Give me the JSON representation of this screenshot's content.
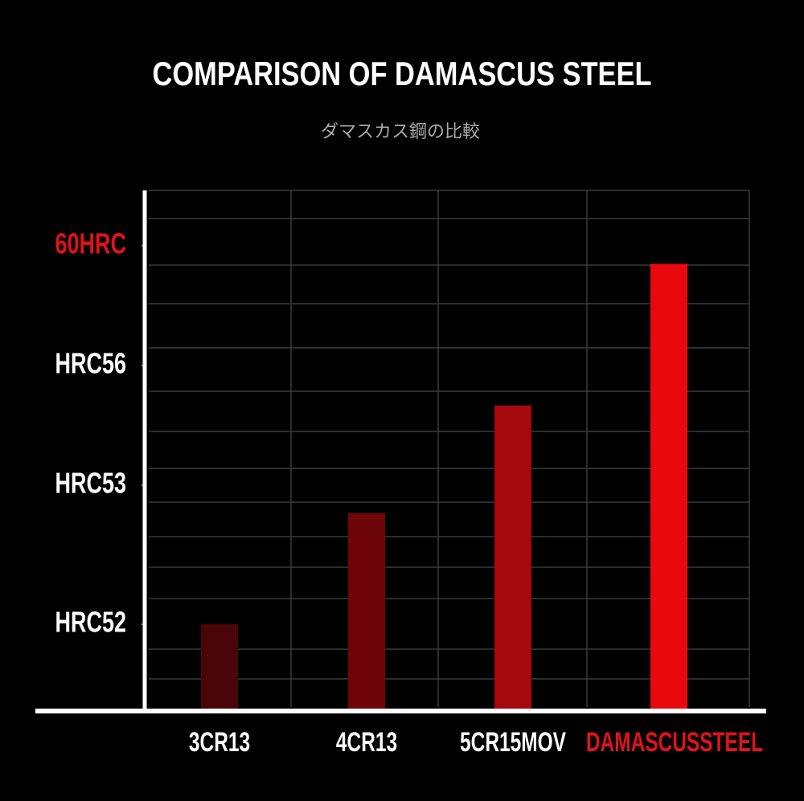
{
  "chart_data": {
    "type": "bar",
    "title": "COMPARISON OF DAMASCUS STEEL",
    "subtitle": "ダマスカス鋼の比較",
    "categories": [
      "3CR13",
      "4CR13",
      "5CR15MOV",
      "DAMASCUSSTEEL"
    ],
    "values": [
      52,
      52.8,
      55,
      59.4
    ],
    "colors": [
      "#4a0508",
      "#6e0609",
      "#a5080d",
      "#e8090f"
    ],
    "category_label_colors": [
      "#ffffff",
      "#ffffff",
      "#ffffff",
      "#e0121a"
    ],
    "ylim": [
      51.4,
      61.9
    ],
    "yticks": [
      {
        "value": 52,
        "label": "HRC52"
      },
      {
        "value": 53,
        "label": "HRC53"
      },
      {
        "value": 56,
        "label": "HRC56"
      },
      {
        "value": 60,
        "label": "60HRC"
      }
    ],
    "ytick_label_colors": [
      "#ffffff",
      "#ffffff",
      "#ffffff",
      "#e0121a"
    ]
  }
}
